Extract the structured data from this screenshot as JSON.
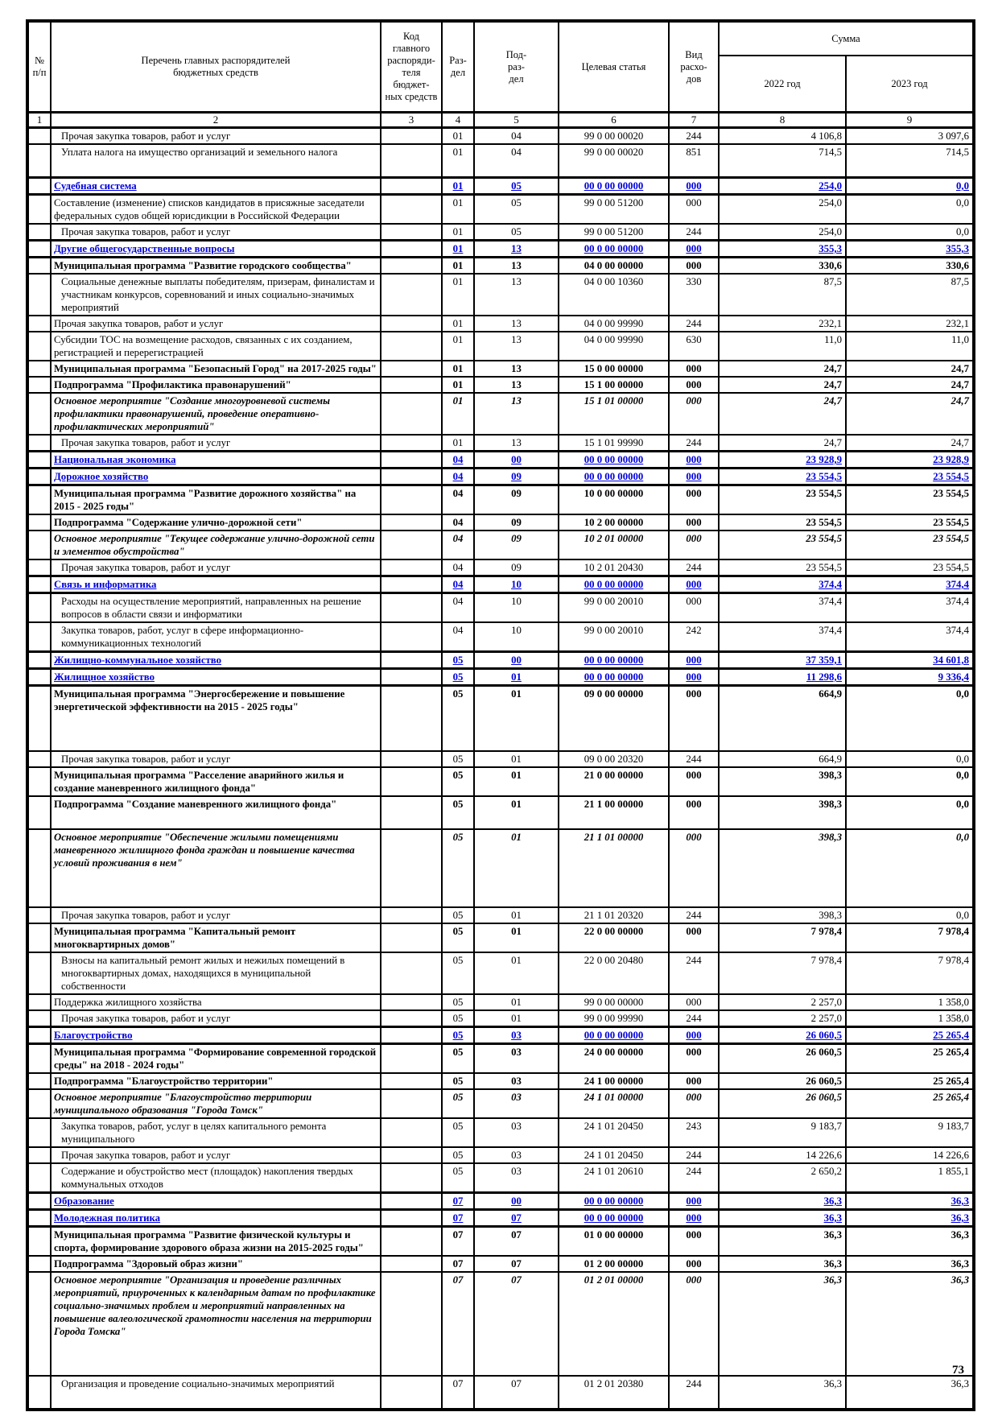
{
  "page": {
    "page_number": "73"
  },
  "colors": {
    "section_text": "#0000dd"
  },
  "table": {
    "header": {
      "num": "№\nп/п",
      "list": "Перечень главных распорядителей\nбюджетных средств",
      "code": "Код\nглавного\nраспоряди-\nтеля бюджет-\nных средств",
      "section": "Раз-\nдел",
      "subsection": "Под-\nраз-\nдел",
      "target": "Целевая статья",
      "expense_type": "Вид расхо-\nдов",
      "sum": "Сумма",
      "y2022": "2022 год",
      "y2023": "2023 год",
      "col_numbers": [
        "1",
        "2",
        "3",
        "4",
        "5",
        "6",
        "7",
        "8",
        "9"
      ]
    },
    "rows": [
      {
        "label": "Прочая закупка товаров, работ и услуг",
        "style": "plain",
        "indent": true,
        "rz": "01",
        "pr": "04",
        "cs": "99 0 00 00020",
        "vr": "244",
        "s22": "4 106,8",
        "s23": "3 097,6"
      },
      {
        "label": "Уплата налога на имущество организаций и земельного налога",
        "style": "plain",
        "indent": true,
        "rz": "01",
        "pr": "04",
        "cs": "99 0 00 00020",
        "vr": "851",
        "s22": "714,5",
        "s23": "714,5",
        "size": "t1"
      },
      {
        "label": "Судебная система",
        "style": "section",
        "rz": "01",
        "pr": "05",
        "cs": "00 0 00 00000",
        "vr": "000",
        "s22": "254,0",
        "s23": "0,0"
      },
      {
        "label": "Составление (изменение) списков кандидатов в присяжные заседатели федеральных судов общей юрисдикции в Российской Федерации",
        "style": "plain",
        "rz": "01",
        "pr": "05",
        "cs": "99 0 00 51200",
        "vr": "000",
        "s22": "254,0",
        "s23": "0,0"
      },
      {
        "label": "Прочая закупка товаров, работ и услуг",
        "style": "plain",
        "indent": true,
        "rz": "01",
        "pr": "05",
        "cs": "99 0 00 51200",
        "vr": "244",
        "s22": "254,0",
        "s23": "0,0"
      },
      {
        "label": "Другие общегосударственные вопросы",
        "style": "section",
        "rz": "01",
        "pr": "13",
        "cs": "00 0 00 00000",
        "vr": "000",
        "s22": "355,3",
        "s23": "355,3"
      },
      {
        "label": "Муниципальная программа \"Развитие городского сообщества\"",
        "style": "program",
        "rz": "01",
        "pr": "13",
        "cs": "04 0 00 00000",
        "vr": "000",
        "s22": "330,6",
        "s23": "330,6"
      },
      {
        "label": "Социальные денежные выплаты победителям, призерам, финалистам и участникам конкурсов, соревнований и иных социально-значимых мероприятий",
        "style": "plain",
        "indent": true,
        "rz": "01",
        "pr": "13",
        "cs": "04 0 00 10360",
        "vr": "330",
        "s22": "87,5",
        "s23": "87,5"
      },
      {
        "label": "Прочая закупка товаров, работ и услуг",
        "style": "plain",
        "rz": "01",
        "pr": "13",
        "cs": "04 0 00 99990",
        "vr": "244",
        "s22": "232,1",
        "s23": "232,1"
      },
      {
        "label": "Субсидии ТОС на возмещение расходов, связанных с их созданием, регистрацией и перерегистрацией",
        "style": "plain",
        "rz": "01",
        "pr": "13",
        "cs": "04 0 00 99990",
        "vr": "630",
        "s22": "11,0",
        "s23": "11,0"
      },
      {
        "label": "Муниципальная программа \"Безопасный Город\" на 2017-2025 годы\"",
        "style": "program",
        "rz": "01",
        "pr": "13",
        "cs": "15 0 00 00000",
        "vr": "000",
        "s22": "24,7",
        "s23": "24,7"
      },
      {
        "label": "Подпрограмма \"Профилактика правонарушений\"",
        "style": "program",
        "rz": "01",
        "pr": "13",
        "cs": "15 1 00 00000",
        "vr": "000",
        "s22": "24,7",
        "s23": "24,7"
      },
      {
        "label": "Основное мероприятие \"Создание многоуровневой системы профилактики правонарушений, проведение оперативно-профилактических мероприятий\"",
        "style": "event",
        "rz": "01",
        "pr": "13",
        "cs": "15 1 01 00000",
        "vr": "000",
        "s22": "24,7",
        "s23": "24,7"
      },
      {
        "label": "Прочая закупка товаров, работ и услуг",
        "style": "plain",
        "indent": true,
        "rz": "01",
        "pr": "13",
        "cs": "15 1 01 99990",
        "vr": "244",
        "s22": "24,7",
        "s23": "24,7"
      },
      {
        "label": "Национальная экономика",
        "style": "section",
        "rz": "04",
        "pr": "00",
        "cs": "00 0 00 00000",
        "vr": "000",
        "s22": "23 928,9",
        "s23": "23 928,9"
      },
      {
        "label": "Дорожное хозяйство",
        "style": "section",
        "rz": "04",
        "pr": "09",
        "cs": "00 0 00 00000",
        "vr": "000",
        "s22": "23 554,5",
        "s23": "23 554,5"
      },
      {
        "label": "Муниципальная программа \"Развитие дорожного хозяйства\" на 2015 - 2025 годы\"",
        "style": "program",
        "rz": "04",
        "pr": "09",
        "cs": "10 0 00 00000",
        "vr": "000",
        "s22": "23 554,5",
        "s23": "23 554,5"
      },
      {
        "label": "Подпрограмма \"Содержание улично-дорожной сети\"",
        "style": "program",
        "rz": "04",
        "pr": "09",
        "cs": "10 2 00 00000",
        "vr": "000",
        "s22": "23 554,5",
        "s23": "23 554,5"
      },
      {
        "label": "Основное мероприятие \"Текущее содержание улично-дорожной сети и элементов обустройства\"",
        "style": "event",
        "rz": "04",
        "pr": "09",
        "cs": "10 2 01 00000",
        "vr": "000",
        "s22": "23 554,5",
        "s23": "23 554,5"
      },
      {
        "label": "Прочая закупка товаров, работ и услуг",
        "style": "plain",
        "indent": true,
        "rz": "04",
        "pr": "09",
        "cs": "10 2 01 20430",
        "vr": "244",
        "s22": "23 554,5",
        "s23": "23 554,5"
      },
      {
        "label": "Связь и информатика",
        "style": "section",
        "rz": "04",
        "pr": "10",
        "cs": "00 0 00 00000",
        "vr": "000",
        "s22": "374,4",
        "s23": "374,4"
      },
      {
        "label": "Расходы на осуществление мероприятий, направленных на решение вопросов в области связи и информатики",
        "style": "plain",
        "indent": true,
        "rz": "04",
        "pr": "10",
        "cs": "99 0 00 20010",
        "vr": "000",
        "s22": "374,4",
        "s23": "374,4"
      },
      {
        "label": "Закупка товаров, работ, услуг в сфере информационно-коммуникационных технологий",
        "style": "plain",
        "indent": true,
        "rz": "04",
        "pr": "10",
        "cs": "99 0 00 20010",
        "vr": "242",
        "s22": "374,4",
        "s23": "374,4"
      },
      {
        "label": "Жилищно-коммунальное хозяйство",
        "style": "section",
        "rz": "05",
        "pr": "00",
        "cs": "00 0 00 00000",
        "vr": "000",
        "s22": "37 359,1",
        "s23": "34 601,8"
      },
      {
        "label": "Жилищное хозяйство",
        "style": "section",
        "rz": "05",
        "pr": "01",
        "cs": "00 0 00 00000",
        "vr": "000",
        "s22": "11 298,6",
        "s23": "9 336,4"
      },
      {
        "label": "Муниципальная программа \"Энергосбережение и повышение энергетической эффективности на 2015 - 2025 годы\"",
        "style": "program",
        "rz": "05",
        "pr": "01",
        "cs": "09 0 00 00000",
        "vr": "000",
        "s22": "664,9",
        "s23": "0,0",
        "size": "t2"
      },
      {
        "label": "Прочая закупка товаров, работ и услуг",
        "style": "plain",
        "indent": true,
        "rz": "05",
        "pr": "01",
        "cs": "09 0 00 20320",
        "vr": "244",
        "s22": "664,9",
        "s23": "0,0"
      },
      {
        "label": "Муниципальная программа \"Расселение аварийного жилья и создание маневренного жилищного фонда\"",
        "style": "program",
        "rz": "05",
        "pr": "01",
        "cs": "21 0 00 00000",
        "vr": "000",
        "s22": "398,3",
        "s23": "0,0"
      },
      {
        "label": "Подпрограмма \"Создание маневренного жилищного фонда\"",
        "style": "program",
        "rz": "05",
        "pr": "01",
        "cs": "21 1 00 00000",
        "vr": "000",
        "s22": "398,3",
        "s23": "0,0",
        "size": "t1"
      },
      {
        "label": "Основное мероприятие \"Обеспечение жилыми помещениями маневренного жилищного фонда граждан и повышение качества условий проживания в нем\"",
        "style": "event",
        "rz": "05",
        "pr": "01",
        "cs": "21 1 01 00000",
        "vr": "000",
        "s22": "398,3",
        "s23": "0,0",
        "size": "t2"
      },
      {
        "label": "Прочая закупка товаров, работ и услуг",
        "style": "plain",
        "indent": true,
        "rz": "05",
        "pr": "01",
        "cs": "21 1 01 20320",
        "vr": "244",
        "s22": "398,3",
        "s23": "0,0"
      },
      {
        "label": "Муниципальная программа \"Капитальный ремонт многоквартирных домов\"",
        "style": "program",
        "rz": "05",
        "pr": "01",
        "cs": "22 0 00 00000",
        "vr": "000",
        "s22": "7 978,4",
        "s23": "7 978,4"
      },
      {
        "label": "Взносы на капитальный ремонт жилых и нежилых помещений в многоквартирных домах, находящихся в муниципальной собственности",
        "style": "plain",
        "indent": true,
        "rz": "05",
        "pr": "01",
        "cs": "22 0 00 20480",
        "vr": "244",
        "s22": "7 978,4",
        "s23": "7 978,4"
      },
      {
        "label": "Поддержка жилищного хозяйства",
        "style": "plain",
        "rz": "05",
        "pr": "01",
        "cs": "99 0 00 00000",
        "vr": "000",
        "s22": "2 257,0",
        "s23": "1 358,0"
      },
      {
        "label": "Прочая закупка товаров, работ и услуг",
        "style": "plain",
        "indent": true,
        "rz": "05",
        "pr": "01",
        "cs": "99 0 00 99990",
        "vr": "244",
        "s22": "2 257,0",
        "s23": "1 358,0"
      },
      {
        "label": "Благоустройство",
        "style": "section",
        "rz": "05",
        "pr": "03",
        "cs": "00 0 00 00000",
        "vr": "000",
        "s22": "26 060,5",
        "s23": "25 265,4"
      },
      {
        "label": "Муниципальная программа \"Формирование современной городской среды\" на 2018 - 2024 годы\"",
        "style": "program",
        "rz": "05",
        "pr": "03",
        "cs": "24 0 00 00000",
        "vr": "000",
        "s22": "26 060,5",
        "s23": "25 265,4"
      },
      {
        "label": "Подпрограмма \"Благоустройство территории\"",
        "style": "program",
        "rz": "05",
        "pr": "03",
        "cs": "24 1 00 00000",
        "vr": "000",
        "s22": "26 060,5",
        "s23": "25 265,4"
      },
      {
        "label": "Основное мероприятие \"Благоустройство территории муниципального образования \"Города Томск\"",
        "style": "event",
        "rz": "05",
        "pr": "03",
        "cs": "24 1 01 00000",
        "vr": "000",
        "s22": "26 060,5",
        "s23": "25 265,4"
      },
      {
        "label": "Закупка товаров, работ, услуг в целях капитального ремонта муниципального",
        "style": "plain",
        "indent": true,
        "rz": "05",
        "pr": "03",
        "cs": "24 1 01 20450",
        "vr": "243",
        "s22": "9 183,7",
        "s23": "9 183,7"
      },
      {
        "label": "Прочая закупка товаров, работ и услуг",
        "style": "plain",
        "indent": true,
        "rz": "05",
        "pr": "03",
        "cs": "24 1 01 20450",
        "vr": "244",
        "s22": "14 226,6",
        "s23": "14 226,6"
      },
      {
        "label": "Содержание и обустройство мест (площадок) накопления твердых коммунальных отходов",
        "style": "plain",
        "indent": true,
        "rz": "05",
        "pr": "03",
        "cs": "24 1 01 20610",
        "vr": "244",
        "s22": "2 650,2",
        "s23": "1 855,1"
      },
      {
        "label": "Образование",
        "style": "section",
        "rz": "07",
        "pr": "00",
        "cs": "00 0 00 00000",
        "vr": "000",
        "s22": "36,3",
        "s23": "36,3"
      },
      {
        "label": "Молодежная политика",
        "style": "section",
        "rz": "07",
        "pr": "07",
        "cs": "00 0 00 00000",
        "vr": "000",
        "s22": "36,3",
        "s23": "36,3"
      },
      {
        "label": "Муниципальная программа \"Развитие физической культуры и спорта, формирование здорового образа жизни на 2015-2025 годы\"",
        "style": "program",
        "rz": "07",
        "pr": "07",
        "cs": "01 0 00 00000",
        "vr": "000",
        "s22": "36,3",
        "s23": "36,3"
      },
      {
        "label": "Подпрограмма \"Здоровый образ жизни\"",
        "style": "program",
        "rz": "07",
        "pr": "07",
        "cs": "01 2 00 00000",
        "vr": "000",
        "s22": "36,3",
        "s23": "36,3"
      },
      {
        "label": "Основное мероприятие \"Организация и проведение различных мероприятий, приуроченных к календарным датам по профилактике социально-значимых проблем и мероприятий направленных на повышение валеологической грамотности населения на территории Города Томска\"",
        "style": "event",
        "rz": "07",
        "pr": "07",
        "cs": "01 2 01 00000",
        "vr": "000",
        "s22": "36,3",
        "s23": "36,3",
        "size": "t2"
      },
      {
        "label": "Организация и проведение социально-значимых мероприятий",
        "style": "plain",
        "indent": true,
        "rz": "07",
        "pr": "07",
        "cs": "01 2 01 20380",
        "vr": "244",
        "s22": "36,3",
        "s23": "36,3",
        "size": "t1"
      }
    ]
  }
}
